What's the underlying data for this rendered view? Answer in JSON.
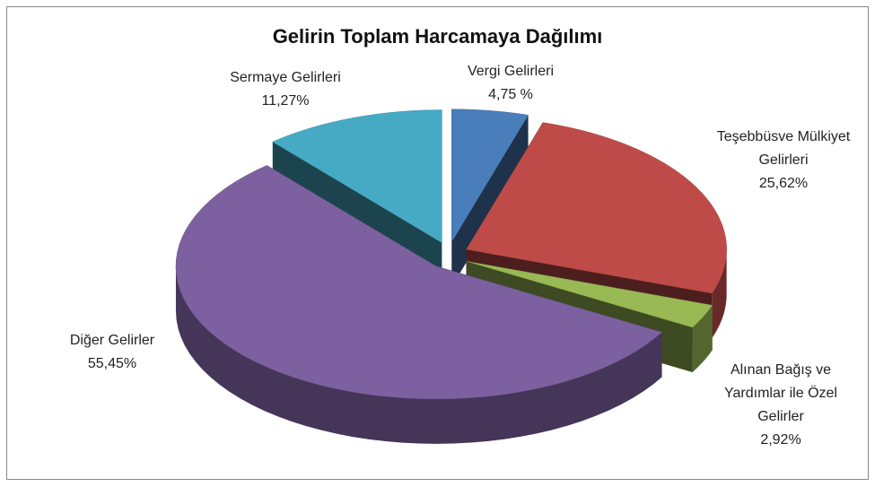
{
  "chart_data": {
    "type": "pie",
    "title": "Gelirin Toplam Harcamaya Dağılımı",
    "categories": [
      "Vergi Gelirleri",
      "Teşebbüsve Mülkiyet Gelirleri",
      "Alınan Bağış ve Yardımlar ile Özel Gelirler",
      "Diğer Gelirler",
      "Sermaye Gelirleri"
    ],
    "values": [
      4.75,
      25.62,
      2.92,
      55.45,
      11.27
    ],
    "value_labels": [
      "4,75 %",
      "25,62%",
      "2,92%",
      "55,45%",
      "11,27%"
    ],
    "colors": [
      "#4a7ebb",
      "#be4b48",
      "#98b954",
      "#7d60a0",
      "#46aac5"
    ]
  }
}
